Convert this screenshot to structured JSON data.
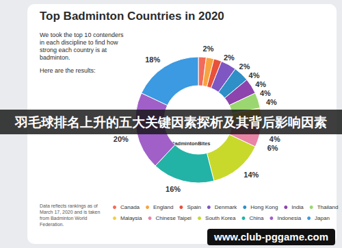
{
  "chart_data": {
    "type": "pie",
    "title": "Top Badminton Countries in 2020",
    "subtitle": "We took the top 10 contenders in each discipline to find how strong each country is at badminton.",
    "annotations": {
      "results": "Here are the results:",
      "source": "Data reflects rankings as of March 17, 2020 and is taken from Badminton World Federation.",
      "center": "BadmintonBites",
      "banner": "羽毛球排名上升的五大关键因素探析及其背后影响因素",
      "watermark": "www.club-pggame.com"
    },
    "categories": [
      "Canada",
      "England",
      "Spain",
      "Denmark",
      "Hong Kong",
      "India",
      "Thailand",
      "Malaysia",
      "Chinese Taipei",
      "South Korea",
      "China",
      "Indonesia",
      "Japan"
    ],
    "values": [
      2,
      2,
      2,
      4,
      4,
      4,
      4,
      4,
      6,
      14,
      16,
      20,
      18
    ],
    "value_labels": [
      "2%",
      "2%",
      "2%",
      "4%",
      "4%",
      "4%",
      "4%",
      "4%",
      "6%",
      "14%",
      "16%",
      "20%",
      "18%"
    ],
    "colors": [
      "#f26b5b",
      "#f7a440",
      "#e8513a",
      "#7e57c2",
      "#2f8fc7",
      "#8e44ad",
      "#9bd770",
      "#f4d03f",
      "#e984a6",
      "#c8d92b",
      "#22b3a6",
      "#a060c8",
      "#3b9ae1"
    ],
    "data_labels": true,
    "legend": "bottom"
  }
}
